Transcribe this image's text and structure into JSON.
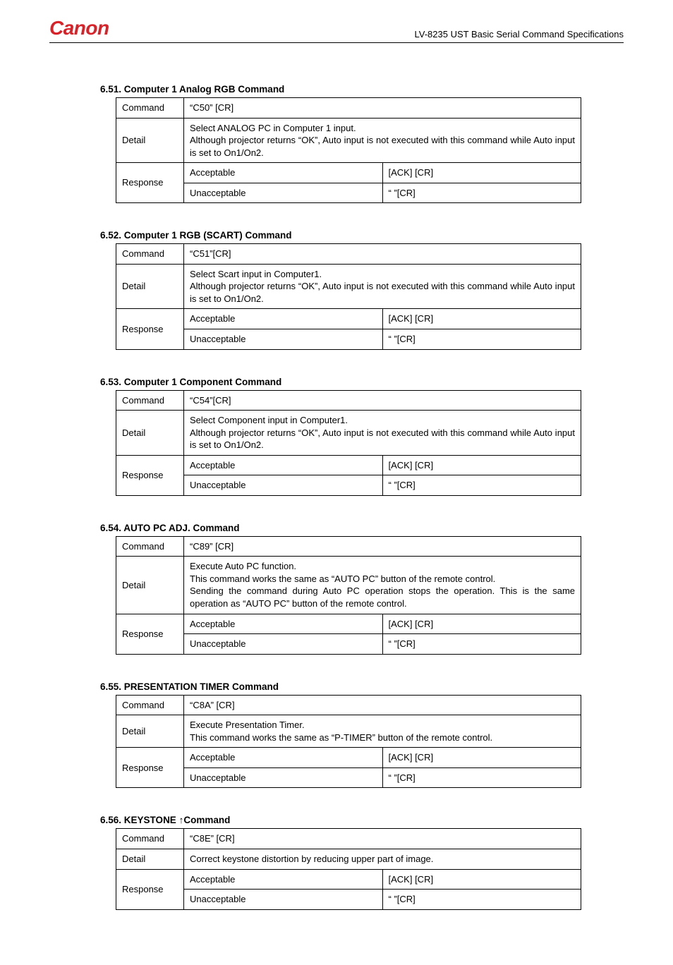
{
  "header": {
    "logo_text": "Canon",
    "doc_title": "LV-8235 UST    Basic Serial Command Specifications"
  },
  "labels": {
    "command": "Command",
    "detail": "Detail",
    "response": "Response",
    "acceptable": "Acceptable",
    "unacceptable": "Unacceptable"
  },
  "sections": [
    {
      "num": "6.51.",
      "title": "Computer 1 Analog RGB Command",
      "command": "“C50” [CR]",
      "detail": "Select ANALOG PC in Computer 1 input.\nAlthough projector returns “OK”, Auto input is not executed with this command while Auto input is set to On1/On2.",
      "ack": "[ACK] [CR]",
      "nack": "“    ”[CR]"
    },
    {
      "num": "6.52.",
      "title": "Computer 1 RGB (SCART) Command",
      "command": "“C51”[CR]",
      "detail": "Select Scart input in Computer1.\nAlthough projector returns “OK”, Auto input is not executed with this command while Auto input is set to On1/On2.",
      "ack": "[ACK] [CR]",
      "nack": "“    ”[CR]"
    },
    {
      "num": "6.53.",
      "title": "Computer 1 Component Command",
      "command": "“C54”[CR]",
      "detail": "Select Component input in Computer1.\nAlthough projector returns “OK”, Auto input is not executed with this command while Auto input is set to On1/On2.",
      "ack": "[ACK] [CR]",
      "nack": "“    ”[CR]"
    },
    {
      "num": "6.54.",
      "title": "AUTO PC ADJ. Command",
      "command": "“C89” [CR]",
      "detail": "Execute Auto PC function.\nThis command works the same as “AUTO PC” button of the remote control.\nSending the command during Auto PC operation stops the operation. This is the same operation as “AUTO PC” button of the remote control.",
      "ack": "[ACK] [CR]",
      "nack": "“    ”[CR]"
    },
    {
      "num": "6.55.",
      "title": "PRESENTATION TIMER Command",
      "command": "“C8A” [CR]",
      "detail": "Execute Presentation Timer.\nThis command works the same as “P-TIMER” button of the remote control.",
      "ack": "[ACK] [CR]",
      "nack": "“    ”[CR]"
    },
    {
      "num": "6.56.",
      "title": "KEYSTONE ↑Command",
      "command": "“C8E” [CR]",
      "detail": "Correct keystone distortion by reducing upper part of image.",
      "ack": "[ACK] [CR]",
      "nack": "“    ”[CR]"
    }
  ]
}
